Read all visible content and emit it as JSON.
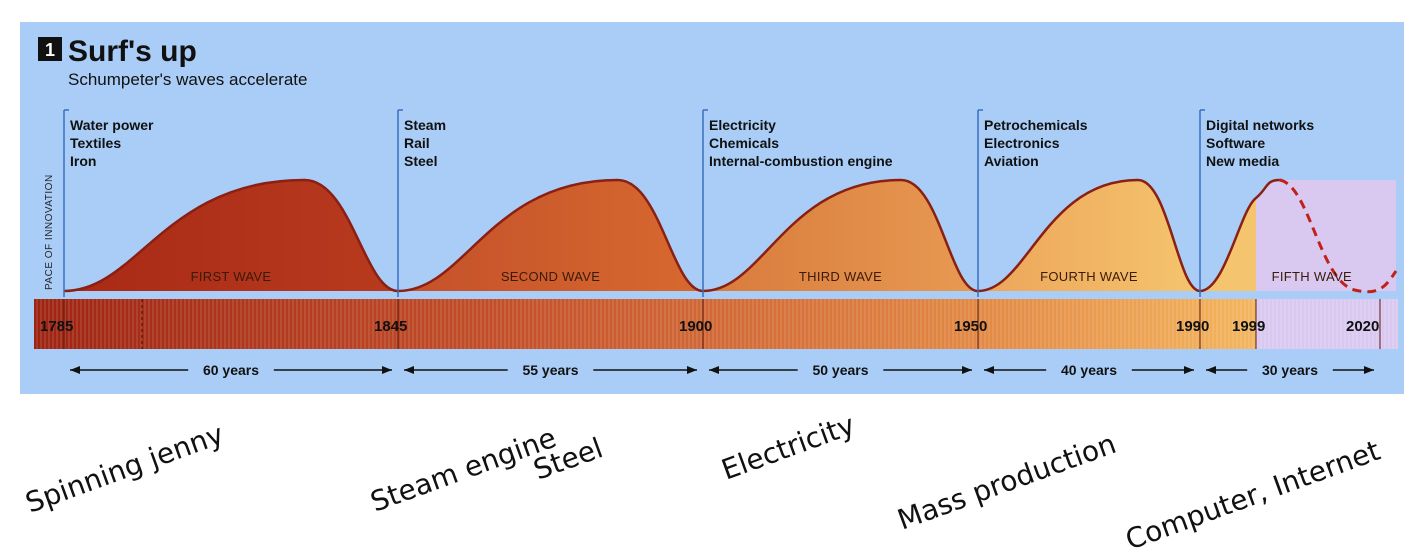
{
  "chart_data": {
    "type": "area",
    "title": "Surf's up",
    "figure_number": "1",
    "subtitle": "Schumpeter's waves accelerate",
    "ylabel": "PACE OF INNOVATION",
    "x_axis_years": [
      1785,
      1845,
      1900,
      1950,
      1990,
      1999,
      2020
    ],
    "waves": [
      {
        "name": "FIRST WAVE",
        "start": 1785,
        "end": 1845,
        "duration_label": "60 years",
        "technologies": [
          "Water power",
          "Textiles",
          "Iron"
        ],
        "color": "#b83a1e"
      },
      {
        "name": "SECOND WAVE",
        "start": 1845,
        "end": 1900,
        "duration_label": "55 years",
        "technologies": [
          "Steam",
          "Rail",
          "Steel"
        ],
        "color": "#d4622e"
      },
      {
        "name": "THIRD WAVE",
        "start": 1900,
        "end": 1950,
        "duration_label": "50 years",
        "technologies": [
          "Electricity",
          "Chemicals",
          "Internal-combustion engine"
        ],
        "color": "#e08a45"
      },
      {
        "name": "FOURTH WAVE",
        "start": 1950,
        "end": 1990,
        "duration_label": "40 years",
        "technologies": [
          "Petrochemicals",
          "Electronics",
          "Aviation"
        ],
        "color": "#f0b766"
      },
      {
        "name": "FIFTH WAVE",
        "start": 1990,
        "end": 2020,
        "duration_label": "30 years",
        "technologies": [
          "Digital networks",
          "Software",
          "New media"
        ],
        "color": "#d9c8f0"
      }
    ],
    "annotations": [
      "Spinning jenny",
      "Steam engine",
      "Steel",
      "Electricity",
      "Mass production",
      "Computer, Internet"
    ]
  },
  "colors": {
    "panel_bg": "#a9cdf7",
    "curve_stroke": "#8a1f12",
    "bar_start": "#a82a16",
    "bar_end": "#f3b15e",
    "fifth_fill": "#d9c8f0"
  }
}
